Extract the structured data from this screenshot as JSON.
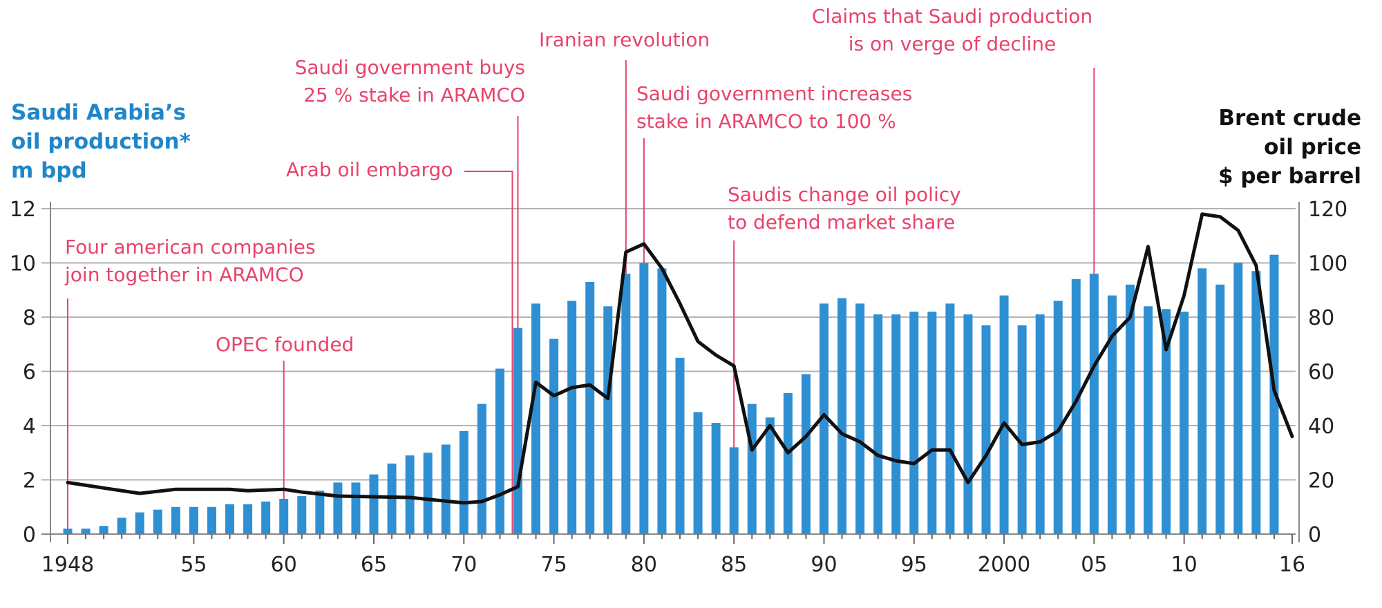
{
  "chart_data": {
    "type": "bar+line",
    "colors": {
      "bars": "#2f8fd3",
      "line": "#111111",
      "annotation": "#e8436b",
      "left_title": "#1f87c8",
      "grid": "#b3b3b3"
    },
    "left_axis": {
      "title": [
        "Saudi Arabia’s",
        "oil production*",
        "m bpd"
      ],
      "range": [
        0,
        12
      ],
      "ticks": [
        0,
        2,
        4,
        6,
        8,
        10,
        12
      ]
    },
    "right_axis": {
      "title": [
        "Brent crude",
        "oil price",
        "$ per barrel"
      ],
      "range": [
        0,
        120
      ],
      "ticks": [
        0,
        20,
        40,
        60,
        80,
        100,
        120
      ]
    },
    "x_axis": {
      "range": [
        1948,
        2016
      ],
      "ticks": [
        {
          "year": 1948,
          "label": "1948"
        },
        {
          "year": 1955,
          "label": "55"
        },
        {
          "year": 1960,
          "label": "60"
        },
        {
          "year": 1965,
          "label": "65"
        },
        {
          "year": 1970,
          "label": "70"
        },
        {
          "year": 1975,
          "label": "75"
        },
        {
          "year": 1980,
          "label": "80"
        },
        {
          "year": 1985,
          "label": "85"
        },
        {
          "year": 1990,
          "label": "90"
        },
        {
          "year": 1995,
          "label": "95"
        },
        {
          "year": 2000,
          "label": "2000"
        },
        {
          "year": 2005,
          "label": "05"
        },
        {
          "year": 2010,
          "label": "10"
        },
        {
          "year": 2016,
          "label": "16"
        }
      ]
    },
    "production": {
      "name": "Saudi Arabia’s oil production (m bpd)",
      "years": [
        1948,
        1949,
        1950,
        1951,
        1952,
        1953,
        1954,
        1955,
        1956,
        1957,
        1958,
        1959,
        1960,
        1961,
        1962,
        1963,
        1964,
        1965,
        1966,
        1967,
        1968,
        1969,
        1970,
        1971,
        1972,
        1973,
        1974,
        1975,
        1976,
        1977,
        1978,
        1979,
        1980,
        1981,
        1982,
        1983,
        1984,
        1985,
        1986,
        1987,
        1988,
        1989,
        1990,
        1991,
        1992,
        1993,
        1994,
        1995,
        1996,
        1997,
        1998,
        1999,
        2000,
        2001,
        2002,
        2003,
        2004,
        2005,
        2006,
        2007,
        2008,
        2009,
        2010,
        2011,
        2012,
        2013,
        2014,
        2015,
        2016
      ],
      "values": [
        0.2,
        0.2,
        0.3,
        0.6,
        0.8,
        0.9,
        1.0,
        1.0,
        1.0,
        1.1,
        1.1,
        1.2,
        1.3,
        1.4,
        1.6,
        1.9,
        1.9,
        2.2,
        2.6,
        2.9,
        3.0,
        3.3,
        3.8,
        4.8,
        6.1,
        7.6,
        8.5,
        7.2,
        8.6,
        9.3,
        8.4,
        9.6,
        10.0,
        9.8,
        6.5,
        4.5,
        4.1,
        3.2,
        4.8,
        4.3,
        5.2,
        5.9,
        8.5,
        8.7,
        8.5,
        8.1,
        8.1,
        8.2,
        8.2,
        8.5,
        8.1,
        7.7,
        8.8,
        7.7,
        8.1,
        8.6,
        9.4,
        9.6,
        8.8,
        9.2,
        8.4,
        8.3,
        8.2,
        9.8,
        9.2,
        10.0,
        9.7,
        10.3,
        null
      ]
    },
    "price": {
      "name": "Brent crude oil price ($ per barrel)",
      "points": [
        [
          1948,
          19
        ],
        [
          1950,
          17
        ],
        [
          1952,
          15
        ],
        [
          1954,
          16.5
        ],
        [
          1957,
          16.5
        ],
        [
          1958,
          16
        ],
        [
          1960,
          16.5
        ],
        [
          1961,
          15.5
        ],
        [
          1963,
          14
        ],
        [
          1967,
          13.5
        ],
        [
          1970,
          11.5
        ],
        [
          1971,
          12
        ],
        [
          1972,
          14.5
        ],
        [
          1973,
          17.5
        ],
        [
          1974,
          56
        ],
        [
          1975,
          51
        ],
        [
          1976,
          54
        ],
        [
          1977,
          55
        ],
        [
          1978,
          50
        ],
        [
          1979,
          104
        ],
        [
          1980,
          107
        ],
        [
          1981,
          98
        ],
        [
          1982,
          85
        ],
        [
          1983,
          71
        ],
        [
          1984,
          66
        ],
        [
          1985,
          62
        ],
        [
          1986,
          31
        ],
        [
          1987,
          40
        ],
        [
          1988,
          30
        ],
        [
          1989,
          36
        ],
        [
          1990,
          44
        ],
        [
          1991,
          37
        ],
        [
          1992,
          34
        ],
        [
          1993,
          29
        ],
        [
          1994,
          27
        ],
        [
          1995,
          26
        ],
        [
          1996,
          31
        ],
        [
          1997,
          31
        ],
        [
          1998,
          19
        ],
        [
          1999,
          29
        ],
        [
          2000,
          41
        ],
        [
          2001,
          33
        ],
        [
          2002,
          34
        ],
        [
          2003,
          38
        ],
        [
          2004,
          49
        ],
        [
          2005,
          62
        ],
        [
          2006,
          73
        ],
        [
          2007,
          80
        ],
        [
          2008,
          106
        ],
        [
          2009,
          68
        ],
        [
          2010,
          88
        ],
        [
          2011,
          118
        ],
        [
          2012,
          117
        ],
        [
          2013,
          112
        ],
        [
          2014,
          99
        ],
        [
          2015,
          53
        ],
        [
          2016,
          36
        ]
      ]
    },
    "annotations": [
      {
        "id": "aramco-founded",
        "year": 1948,
        "lines": [
          "Four american companies",
          "join together in ARAMCO"
        ]
      },
      {
        "id": "opec-founded",
        "year": 1960,
        "lines": [
          "OPEC founded"
        ]
      },
      {
        "id": "saudi-25-stake",
        "year": 1973,
        "lines": [
          "Saudi government buys",
          "25 % stake in ARAMCO"
        ]
      },
      {
        "id": "arab-oil-embargo",
        "year": 1973,
        "lines": [
          "Arab oil embargo"
        ]
      },
      {
        "id": "iranian-revolution",
        "year": 1979,
        "lines": [
          "Iranian revolution"
        ]
      },
      {
        "id": "saudi-100-stake",
        "year": 1980,
        "lines": [
          "Saudi government increases",
          "stake in ARAMCO to 100 %"
        ]
      },
      {
        "id": "saudi-policy-change",
        "year": 1985,
        "lines": [
          "Saudis change oil policy",
          "to defend market share"
        ]
      },
      {
        "id": "decline-claims",
        "year": 2005,
        "lines": [
          "Claims that Saudi production",
          "is on verge of decline"
        ]
      }
    ]
  }
}
